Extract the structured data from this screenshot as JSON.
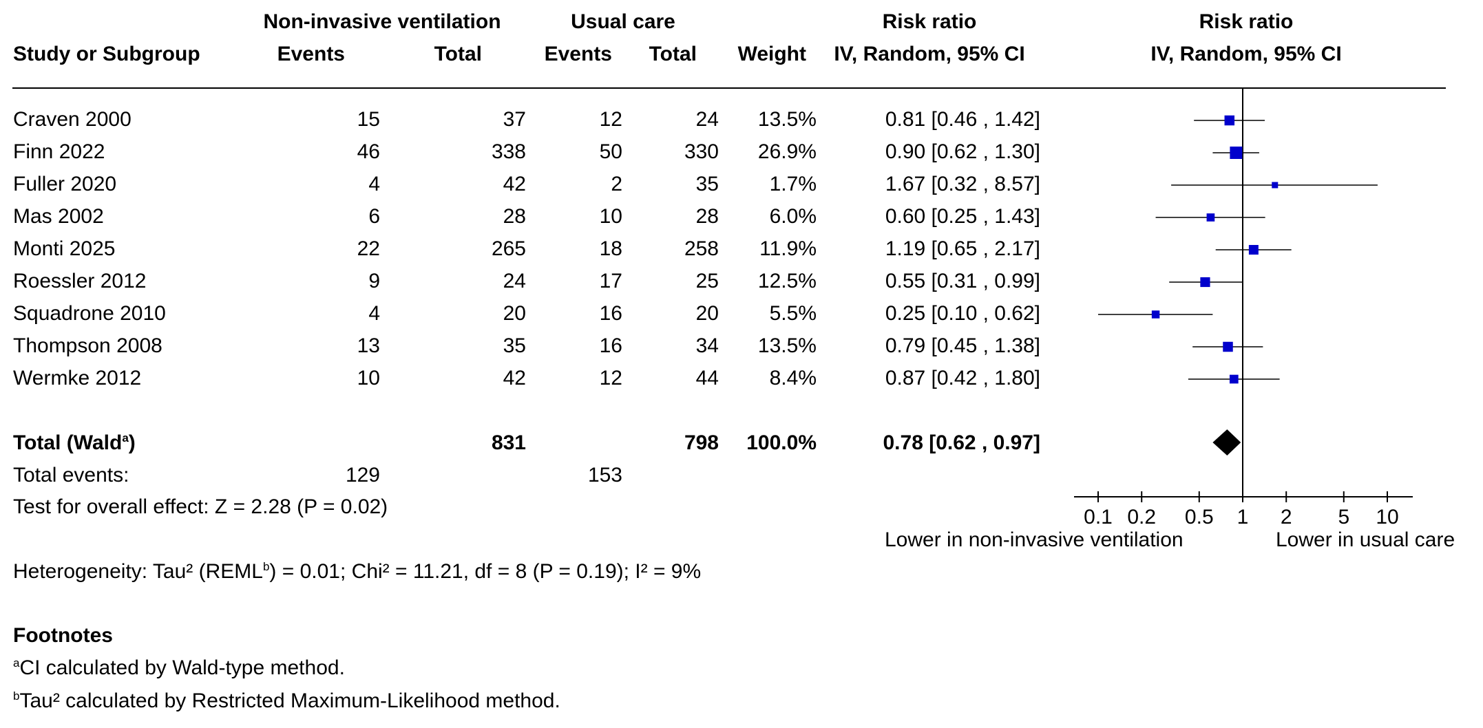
{
  "header": {
    "group1": "Non-invasive ventilation",
    "group2": "Usual care",
    "rr_col": "Risk ratio",
    "rr_plot": "Risk ratio",
    "study": "Study or Subgroup",
    "events1": "Events",
    "total1": "Total",
    "events2": "Events",
    "total2": "Total",
    "weight": "Weight",
    "method_col": "IV, Random, 95% CI",
    "method_plot": "IV, Random, 95% CI"
  },
  "studies": [
    {
      "name": "Craven 2000",
      "e1": "15",
      "n1": "37",
      "e2": "12",
      "n2": "24",
      "weight": "13.5%",
      "ci_text": "0.81 [0.46 , 1.42]"
    },
    {
      "name": "Finn 2022",
      "e1": "46",
      "n1": "338",
      "e2": "50",
      "n2": "330",
      "weight": "26.9%",
      "ci_text": "0.90 [0.62 , 1.30]"
    },
    {
      "name": "Fuller 2020",
      "e1": "4",
      "n1": "42",
      "e2": "2",
      "n2": "35",
      "weight": "1.7%",
      "ci_text": "1.67 [0.32 , 8.57]"
    },
    {
      "name": "Mas 2002",
      "e1": "6",
      "n1": "28",
      "e2": "10",
      "n2": "28",
      "weight": "6.0%",
      "ci_text": "0.60 [0.25 , 1.43]"
    },
    {
      "name": "Monti 2025",
      "e1": "22",
      "n1": "265",
      "e2": "18",
      "n2": "258",
      "weight": "11.9%",
      "ci_text": "1.19 [0.65 , 2.17]"
    },
    {
      "name": "Roessler 2012",
      "e1": "9",
      "n1": "24",
      "e2": "17",
      "n2": "25",
      "weight": "12.5%",
      "ci_text": "0.55 [0.31 , 0.99]"
    },
    {
      "name": "Squadrone 2010",
      "e1": "4",
      "n1": "20",
      "e2": "16",
      "n2": "20",
      "weight": "5.5%",
      "ci_text": "0.25 [0.10 , 0.62]"
    },
    {
      "name": "Thompson 2008",
      "e1": "13",
      "n1": "35",
      "e2": "16",
      "n2": "34",
      "weight": "13.5%",
      "ci_text": "0.79 [0.45 , 1.38]"
    },
    {
      "name": "Wermke 2012",
      "e1": "10",
      "n1": "42",
      "e2": "12",
      "n2": "44",
      "weight": "8.4%",
      "ci_text": "0.87 [0.42 , 1.80]"
    }
  ],
  "total": {
    "label": "Total (Wald",
    "label_sup": "a",
    "label_close": ")",
    "n1": "831",
    "n2": "798",
    "weight": "100.0%",
    "ci_text": "0.78 [0.62 , 0.97]"
  },
  "total_events": {
    "label": "Total events:",
    "e1": "129",
    "e2": "153"
  },
  "overall_effect": "Test for overall effect: Z = 2.28 (P = 0.02)",
  "heterogeneity": {
    "pre": "Heterogeneity: Tau² (REML",
    "sup": "b",
    "post": ") = 0.01; Chi² = 11.21, df = 8 (P = 0.19); I² = 9%"
  },
  "footnotes": {
    "title": "Footnotes",
    "items": [
      {
        "mark": "a",
        "text": "CI calculated by Wald-type method."
      },
      {
        "mark": "b",
        "text": "Tau² calculated by Restricted Maximum-Likelihood method."
      }
    ]
  },
  "axis_labels": {
    "left": "Lower in non-invasive ventilation",
    "right": "Lower in usual care"
  },
  "colors": {
    "study_marker": "#0000cc",
    "summary_diamond": "#000000",
    "lines": "#000000"
  },
  "chart_data": {
    "type": "forest",
    "x_scale": "log",
    "xlim": [
      0.05,
      20
    ],
    "null_value": 1,
    "xticks": [
      0.1,
      0.2,
      0.5,
      1,
      2,
      5,
      10
    ],
    "xtick_labels": [
      "0.1",
      "0.2",
      "0.5",
      "1",
      "2",
      "5",
      "10"
    ],
    "points": [
      {
        "study": "Craven 2000",
        "rr": 0.81,
        "lo": 0.46,
        "hi": 1.42,
        "weight": 13.5
      },
      {
        "study": "Finn 2022",
        "rr": 0.9,
        "lo": 0.62,
        "hi": 1.3,
        "weight": 26.9
      },
      {
        "study": "Fuller 2020",
        "rr": 1.67,
        "lo": 0.32,
        "hi": 8.57,
        "weight": 1.7
      },
      {
        "study": "Mas 2002",
        "rr": 0.6,
        "lo": 0.25,
        "hi": 1.43,
        "weight": 6.0
      },
      {
        "study": "Monti 2025",
        "rr": 1.19,
        "lo": 0.65,
        "hi": 2.17,
        "weight": 11.9
      },
      {
        "study": "Roessler 2012",
        "rr": 0.55,
        "lo": 0.31,
        "hi": 0.99,
        "weight": 12.5
      },
      {
        "study": "Squadrone 2010",
        "rr": 0.25,
        "lo": 0.1,
        "hi": 0.62,
        "weight": 5.5
      },
      {
        "study": "Thompson 2008",
        "rr": 0.79,
        "lo": 0.45,
        "hi": 1.38,
        "weight": 13.5
      },
      {
        "study": "Wermke 2012",
        "rr": 0.87,
        "lo": 0.42,
        "hi": 1.8,
        "weight": 8.4
      }
    ],
    "summary": {
      "rr": 0.78,
      "lo": 0.62,
      "hi": 0.97
    }
  }
}
